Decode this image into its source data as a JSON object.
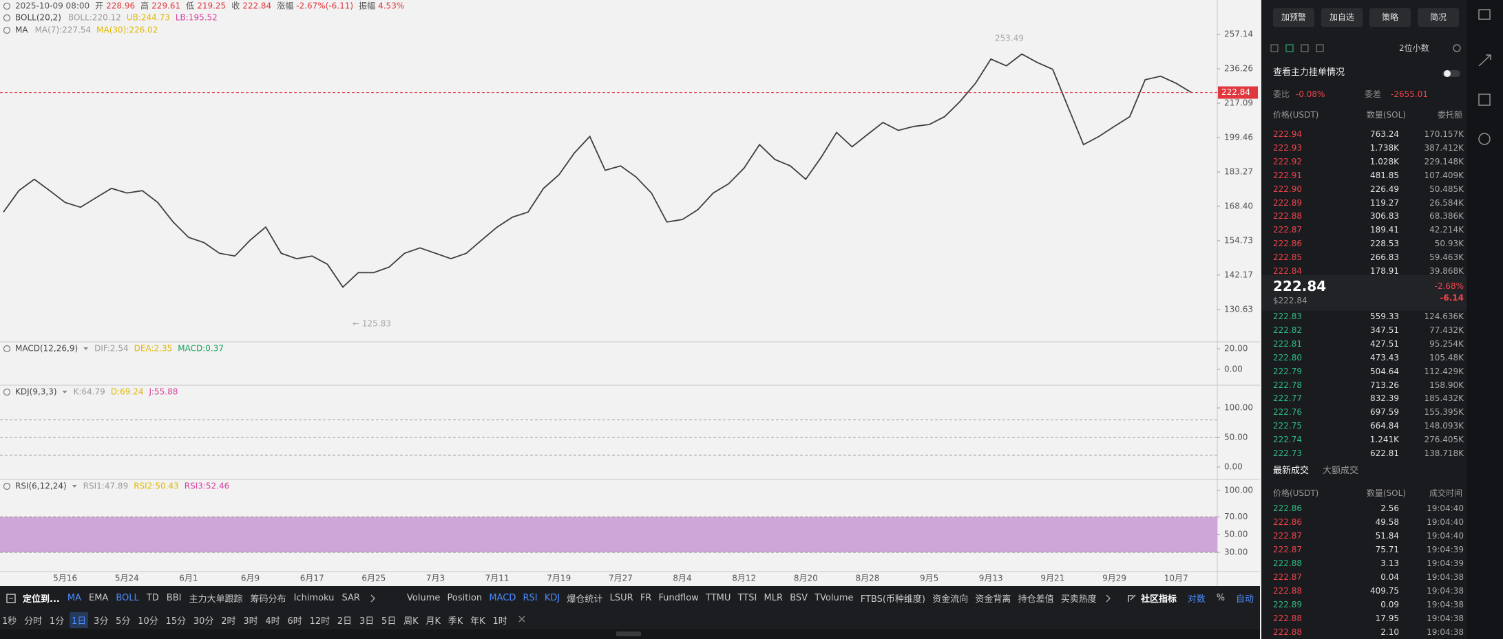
{
  "header": {
    "datetime": "2025-10-09 08:00",
    "fields": [
      {
        "label": "开",
        "value": "228.96"
      },
      {
        "label": "高",
        "value": "229.61"
      },
      {
        "label": "低",
        "value": "219.25"
      },
      {
        "label": "收",
        "value": "222.84"
      },
      {
        "label": "涨幅",
        "value": "-2.67%(-6.11)"
      },
      {
        "label": "振幅",
        "value": "4.53%"
      }
    ]
  },
  "overlays": [
    {
      "name": "BOLL(20,2)",
      "items": [
        "BOLL:220.12",
        "UB:244.73",
        "LB:195.52"
      ],
      "colors": [
        "#9a9a9a",
        "#e0b800",
        "#d8409c"
      ]
    },
    {
      "name": "MA",
      "items": [
        "MA(7):227.54",
        "MA(30):226.02"
      ],
      "colors": [
        "#9a9a9a",
        "#e0b800"
      ]
    }
  ],
  "chart_data": {
    "type": "line",
    "color": "#3d3d3d",
    "log_scale": true,
    "categories": [
      null,
      null,
      null,
      null,
      "5月16",
      null,
      null,
      null,
      "5月24",
      null,
      null,
      null,
      "6月1",
      null,
      null,
      null,
      "6月9",
      null,
      null,
      null,
      "6月17",
      null,
      null,
      null,
      "6月25",
      null,
      null,
      null,
      "7月3",
      null,
      null,
      null,
      "7月11",
      null,
      null,
      null,
      "7月19",
      null,
      null,
      null,
      "7月27",
      null,
      null,
      null,
      "8月4",
      null,
      null,
      null,
      "8月12",
      null,
      null,
      null,
      "8月20",
      null,
      null,
      null,
      "8月28",
      null,
      null,
      null,
      "9月5",
      null,
      null,
      null,
      "9月13",
      null,
      null,
      null,
      "9月21",
      null,
      null,
      null,
      "9月29",
      null,
      null,
      null,
      "10月7",
      null
    ],
    "values": [
      166,
      175,
      180,
      175,
      170,
      168,
      172,
      176,
      174,
      175,
      170,
      162,
      156,
      154,
      150,
      149,
      155,
      160,
      150,
      148,
      149,
      146,
      138,
      143,
      143,
      145,
      150,
      152,
      150,
      148,
      150,
      155,
      160,
      164,
      166,
      176,
      182,
      192,
      200,
      184,
      186,
      181,
      174,
      162,
      163,
      167,
      174,
      178,
      185,
      196,
      189,
      186,
      180,
      190,
      202,
      195,
      201,
      207,
      203,
      205,
      206,
      210,
      218,
      228,
      242,
      238,
      245,
      240,
      236,
      215,
      196,
      200,
      205,
      210,
      230,
      232,
      228,
      222.84
    ],
    "ylim": [
      120.6,
      279.9
    ],
    "yticks": [
      130.63,
      142.17,
      154.73,
      {
        "value": 168.4,
        "label": "168.40"
      },
      183.27,
      199.46,
      217.09,
      236.26,
      257.14
    ],
    "last_price": 222.84,
    "last_price_color": "#e0383e",
    "annotations": [
      "253.49",
      "← 125.83"
    ]
  },
  "indicators": [
    {
      "name": "MACD(12,26,9)",
      "items": [
        "DIF:2.54",
        "DEA:2.35",
        "MACD:0.37"
      ],
      "colors": [
        "#9a9a9a",
        "#e0b800",
        "#18a058"
      ],
      "ylim": [
        -15.3,
        26.7
      ],
      "yticks": [
        {
          "value": 20,
          "label": "20.00"
        },
        {
          "value": 0,
          "label": "0.00"
        }
      ]
    },
    {
      "name": "KDJ(9,3,3)",
      "items": [
        "K:64.79",
        "D:69.24",
        "J:55.88"
      ],
      "colors": [
        "#9a9a9a",
        "#e0b800",
        "#d8409c"
      ],
      "ylim": [
        -20.9,
        138.4
      ],
      "yticks": [
        {
          "value": 100,
          "label": "100.00"
        },
        {
          "value": 50,
          "label": "50.00"
        },
        {
          "value": 0,
          "label": "0.00"
        }
      ],
      "guide_lines": [
        80,
        50,
        20
      ]
    },
    {
      "name": "RSI(6,12,24)",
      "items": [
        "RSI1:47.89",
        "RSI2:50.43",
        "RSI3:52.46"
      ],
      "colors": [
        "#9a9a9a",
        "#e0b800",
        "#d8409c"
      ],
      "ylim": [
        8.2,
        112.4
      ],
      "yticks": [
        {
          "value": 100,
          "label": "100.00"
        },
        {
          "value": 70,
          "label": "70.00"
        },
        {
          "value": 50,
          "label": "50.00"
        },
        {
          "value": 30,
          "label": "30.00"
        }
      ],
      "band": [
        30,
        70
      ]
    }
  ],
  "toolbar": {
    "left": [
      {
        "text": "定位到...",
        "active": false
      },
      {
        "text": "MA",
        "active": true
      },
      {
        "text": "EMA",
        "active": false
      },
      {
        "text": "BOLL",
        "active": true
      },
      {
        "text": "TD",
        "active": false
      },
      {
        "text": "BBI",
        "active": false
      },
      {
        "text": "主力大单跟踪",
        "active": false
      },
      {
        "text": "筹码分布",
        "active": false
      },
      {
        "text": "Ichimoku",
        "active": false
      },
      {
        "text": "SAR",
        "active": false
      }
    ],
    "middle": [
      {
        "text": "Volume",
        "active": false
      },
      {
        "text": "Position",
        "active": false
      },
      {
        "text": "MACD",
        "active": true
      },
      {
        "text": "RSI",
        "active": true
      },
      {
        "text": "KDJ",
        "active": true
      },
      {
        "text": "爆仓统计",
        "active": false
      },
      {
        "text": "LSUR",
        "active": false
      },
      {
        "text": "FR",
        "active": false
      },
      {
        "text": "Fundflow",
        "active": false
      },
      {
        "text": "TTMU",
        "active": false
      },
      {
        "text": "TTSI",
        "active": false
      },
      {
        "text": "MLR",
        "active": false
      },
      {
        "text": "BSV",
        "active": false
      },
      {
        "text": "TVolume",
        "active": false
      },
      {
        "text": "FTBS(币种维度)",
        "active": false
      },
      {
        "text": "资金流向",
        "active": false
      },
      {
        "text": "资金背离",
        "active": false
      },
      {
        "text": "持仓差值",
        "active": false
      },
      {
        "text": "买卖热度",
        "active": false
      }
    ],
    "right": [
      {
        "text": "社区指标",
        "active": false
      },
      {
        "text": "对数",
        "active": true
      },
      {
        "text": "%",
        "active": false
      },
      {
        "text": "自动",
        "active": true
      }
    ],
    "intervals": [
      {
        "text": "1秒",
        "active": false
      },
      {
        "text": "分时",
        "active": false
      },
      {
        "text": "1分",
        "active": false
      },
      {
        "text": "1日",
        "active": true
      },
      {
        "text": "3分",
        "active": false
      },
      {
        "text": "5分",
        "active": false
      },
      {
        "text": "10分",
        "active": false
      },
      {
        "text": "15分",
        "active": false
      },
      {
        "text": "30分",
        "active": false
      },
      {
        "text": "2时",
        "active": false
      },
      {
        "text": "3时",
        "active": false
      },
      {
        "text": "4时",
        "active": false
      },
      {
        "text": "6时",
        "active": false
      },
      {
        "text": "12时",
        "active": false
      },
      {
        "text": "2日",
        "active": false
      },
      {
        "text": "3日",
        "active": false
      },
      {
        "text": "5日",
        "active": false
      },
      {
        "text": "周K",
        "active": false
      },
      {
        "text": "月K",
        "active": false
      },
      {
        "text": "季K",
        "active": false
      },
      {
        "text": "年K",
        "active": false
      },
      {
        "text": "1时",
        "active": false
      }
    ]
  },
  "panel": {
    "buttons": [
      "加预警",
      "加自选",
      "策略",
      "简况"
    ],
    "precision": "2位小数",
    "depth_link": "查看主力挂单情况",
    "ratio_label": "委比",
    "ratio": "-0.08%",
    "diff_label": "委差",
    "diff": "-2655.01",
    "book_headers": [
      "价格(USDT)",
      "数量(SOL)",
      "委托额"
    ],
    "asks": [
      [
        "222.94",
        "763.24",
        "170.157K"
      ],
      [
        "222.93",
        "1.738K",
        "387.412K"
      ],
      [
        "222.92",
        "1.028K",
        "229.148K"
      ],
      [
        "222.91",
        "481.85",
        "107.409K"
      ],
      [
        "222.90",
        "226.49",
        "50.485K"
      ],
      [
        "222.89",
        "119.27",
        "26.584K"
      ],
      [
        "222.88",
        "306.83",
        "68.386K"
      ],
      [
        "222.87",
        "189.41",
        "42.214K"
      ],
      [
        "222.86",
        "228.53",
        "50.93K"
      ],
      [
        "222.85",
        "266.83",
        "59.463K"
      ],
      [
        "222.84",
        "178.91",
        "39.868K"
      ]
    ],
    "mid": {
      "price": "222.84",
      "usd": "$222.84",
      "change_pct": "-2.68%",
      "change": "-6.14"
    },
    "bids": [
      [
        "222.83",
        "559.33",
        "124.636K"
      ],
      [
        "222.82",
        "347.51",
        "77.432K"
      ],
      [
        "222.81",
        "427.51",
        "95.254K"
      ],
      [
        "222.80",
        "473.43",
        "105.48K"
      ],
      [
        "222.79",
        "504.64",
        "112.429K"
      ],
      [
        "222.78",
        "713.26",
        "158.90K"
      ],
      [
        "222.77",
        "832.39",
        "185.432K"
      ],
      [
        "222.76",
        "697.59",
        "155.395K"
      ],
      [
        "222.75",
        "664.84",
        "148.093K"
      ],
      [
        "222.74",
        "1.241K",
        "276.405K"
      ],
      [
        "222.73",
        "622.81",
        "138.718K"
      ]
    ],
    "trade_tabs": [
      "最新成交",
      "大额成交"
    ],
    "trade_headers": [
      "价格(USDT)",
      "数量(SOL)",
      "成交时间"
    ],
    "trades": [
      {
        "side": "buy",
        "row": [
          "222.86",
          "2.56",
          "19:04:40"
        ]
      },
      {
        "side": "sell",
        "row": [
          "222.86",
          "49.58",
          "19:04:40"
        ]
      },
      {
        "side": "sell",
        "row": [
          "222.87",
          "51.84",
          "19:04:40"
        ]
      },
      {
        "side": "sell",
        "row": [
          "222.87",
          "75.71",
          "19:04:39"
        ]
      },
      {
        "side": "buy",
        "row": [
          "222.88",
          "3.13",
          "19:04:39"
        ]
      },
      {
        "side": "sell",
        "row": [
          "222.87",
          "0.04",
          "19:04:38"
        ]
      },
      {
        "side": "sell",
        "row": [
          "222.88",
          "409.75",
          "19:04:38"
        ]
      },
      {
        "side": "buy",
        "row": [
          "222.89",
          "0.09",
          "19:04:38"
        ]
      },
      {
        "side": "sell",
        "row": [
          "222.88",
          "17.95",
          "19:04:38"
        ]
      },
      {
        "side": "sell",
        "row": [
          "222.88",
          "2.10",
          "19:04:38"
        ]
      }
    ]
  }
}
